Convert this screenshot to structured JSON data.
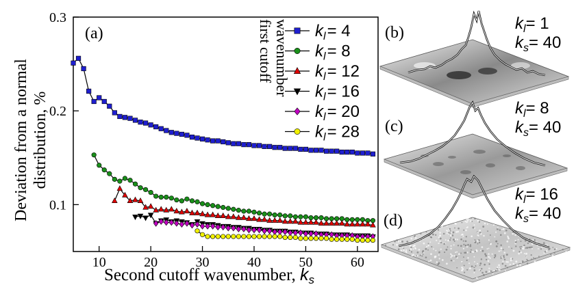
{
  "chart_data": [
    {
      "type": "line",
      "panel_label": "(a)",
      "xlabel": "Second cutoff wavenumber, ",
      "xlabel_var": "k",
      "xlabel_sub": "s",
      "ylabel_line1": "Deviation from a normal",
      "ylabel_line2": "distribution, %",
      "xlim": [
        5,
        64
      ],
      "ylim": [
        0.05,
        0.3
      ],
      "xticks": [
        10,
        20,
        30,
        40,
        50,
        60
      ],
      "yticks": [
        0.1,
        0.2,
        0.3
      ],
      "ytick_labels": [
        "0.1",
        "0.2",
        "0.3"
      ],
      "legend_title_line1": "first cutoff",
      "legend_title_line2": "wavenumber",
      "legend_var": "k",
      "legend_sub": "l",
      "legend_position": "top-right",
      "grid": false,
      "series": [
        {
          "name": "= 4",
          "marker": "square",
          "color": "#1f1fcf",
          "x": [
            5,
            6,
            7,
            8,
            9,
            10,
            11,
            12,
            13,
            14,
            15,
            16,
            17,
            18,
            19,
            20,
            21,
            22,
            23,
            24,
            25,
            26,
            27,
            28,
            29,
            30,
            31,
            32,
            33,
            34,
            35,
            36,
            37,
            38,
            39,
            40,
            41,
            42,
            43,
            44,
            45,
            46,
            47,
            48,
            49,
            50,
            51,
            52,
            53,
            54,
            55,
            56,
            57,
            58,
            59,
            60,
            61,
            62,
            63
          ],
          "y": [
            0.251,
            0.256,
            0.245,
            0.221,
            0.21,
            0.214,
            0.21,
            0.205,
            0.198,
            0.194,
            0.193,
            0.192,
            0.19,
            0.188,
            0.187,
            0.185,
            0.183,
            0.181,
            0.179,
            0.177,
            0.176,
            0.175,
            0.174,
            0.172,
            0.171,
            0.17,
            0.169,
            0.168,
            0.168,
            0.167,
            0.166,
            0.165,
            0.165,
            0.164,
            0.164,
            0.163,
            0.163,
            0.162,
            0.162,
            0.161,
            0.161,
            0.16,
            0.16,
            0.16,
            0.159,
            0.159,
            0.158,
            0.158,
            0.158,
            0.157,
            0.157,
            0.157,
            0.156,
            0.156,
            0.156,
            0.155,
            0.155,
            0.155,
            0.154
          ]
        },
        {
          "name": "= 8",
          "marker": "circle",
          "color": "#1a8f1a",
          "x": [
            9,
            10,
            11,
            12,
            13,
            14,
            15,
            16,
            17,
            18,
            19,
            20,
            21,
            22,
            23,
            24,
            25,
            26,
            27,
            28,
            29,
            30,
            31,
            32,
            33,
            34,
            35,
            36,
            37,
            38,
            39,
            40,
            41,
            42,
            43,
            44,
            45,
            46,
            47,
            48,
            49,
            50,
            51,
            52,
            53,
            54,
            55,
            56,
            57,
            58,
            59,
            60,
            61,
            62,
            63
          ],
          "y": [
            0.153,
            0.142,
            0.137,
            0.133,
            0.127,
            0.125,
            0.128,
            0.126,
            0.122,
            0.118,
            0.116,
            0.113,
            0.109,
            0.108,
            0.108,
            0.107,
            0.105,
            0.104,
            0.106,
            0.104,
            0.103,
            0.101,
            0.1,
            0.099,
            0.098,
            0.097,
            0.096,
            0.095,
            0.094,
            0.093,
            0.093,
            0.092,
            0.091,
            0.09,
            0.09,
            0.089,
            0.089,
            0.088,
            0.088,
            0.087,
            0.087,
            0.087,
            0.086,
            0.086,
            0.086,
            0.085,
            0.085,
            0.085,
            0.085,
            0.084,
            0.084,
            0.084,
            0.084,
            0.083,
            0.083
          ]
        },
        {
          "name": "= 12",
          "marker": "triangle-up",
          "color": "#e00000",
          "x": [
            13,
            14,
            15,
            16,
            17,
            18,
            19,
            20,
            21,
            22,
            23,
            24,
            25,
            26,
            27,
            28,
            29,
            30,
            31,
            32,
            33,
            34,
            35,
            36,
            37,
            38,
            39,
            40,
            41,
            42,
            43,
            44,
            45,
            46,
            47,
            48,
            49,
            50,
            51,
            52,
            53,
            54,
            55,
            56,
            57,
            58,
            59,
            60,
            61,
            62,
            63
          ],
          "y": [
            0.104,
            0.117,
            0.11,
            0.104,
            0.105,
            0.104,
            0.097,
            0.098,
            0.094,
            0.095,
            0.094,
            0.095,
            0.093,
            0.092,
            0.093,
            0.091,
            0.091,
            0.09,
            0.089,
            0.089,
            0.088,
            0.088,
            0.087,
            0.087,
            0.086,
            0.086,
            0.085,
            0.085,
            0.084,
            0.084,
            0.083,
            0.083,
            0.083,
            0.082,
            0.082,
            0.082,
            0.081,
            0.081,
            0.081,
            0.081,
            0.08,
            0.08,
            0.08,
            0.08,
            0.08,
            0.079,
            0.079,
            0.079,
            0.079,
            0.079,
            0.078
          ]
        },
        {
          "name": "= 16",
          "marker": "triangle-down",
          "color": "#000000",
          "x": [
            17,
            18,
            19,
            20,
            21,
            22,
            23,
            24,
            25,
            26,
            27,
            28,
            29,
            30,
            31,
            32,
            33,
            34,
            35,
            36,
            37,
            38,
            39,
            40,
            41,
            42,
            43,
            44,
            45,
            46,
            47,
            48,
            49,
            50,
            51,
            52,
            53,
            54,
            55,
            56,
            57,
            58,
            59,
            60,
            61,
            62,
            63
          ],
          "y": [
            0.087,
            0.088,
            0.086,
            0.089,
            0.08,
            0.083,
            0.084,
            0.082,
            0.083,
            0.082,
            0.081,
            0.079,
            0.082,
            0.08,
            0.079,
            0.079,
            0.078,
            0.077,
            0.077,
            0.076,
            0.076,
            0.075,
            0.075,
            0.074,
            0.074,
            0.073,
            0.073,
            0.072,
            0.072,
            0.072,
            0.071,
            0.071,
            0.07,
            0.07,
            0.07,
            0.069,
            0.069,
            0.069,
            0.068,
            0.068,
            0.068,
            0.068,
            0.067,
            0.067,
            0.067,
            0.067,
            0.066
          ]
        },
        {
          "name": "= 20",
          "marker": "diamond",
          "color": "#c000c0",
          "x": [
            21,
            22,
            23,
            24,
            25,
            26,
            27,
            28,
            29,
            30,
            31,
            32,
            33,
            34,
            35,
            36,
            37,
            38,
            39,
            40,
            41,
            42,
            43,
            44,
            45,
            46,
            47,
            48,
            49,
            50,
            51,
            52,
            53,
            54,
            55,
            56,
            57,
            58,
            59,
            60,
            61,
            62,
            63
          ],
          "y": [
            0.08,
            0.082,
            0.081,
            0.081,
            0.08,
            0.079,
            0.08,
            0.078,
            0.079,
            0.077,
            0.077,
            0.077,
            0.076,
            0.076,
            0.075,
            0.075,
            0.074,
            0.074,
            0.073,
            0.073,
            0.073,
            0.072,
            0.072,
            0.071,
            0.071,
            0.071,
            0.07,
            0.07,
            0.07,
            0.069,
            0.069,
            0.069,
            0.068,
            0.068,
            0.068,
            0.067,
            0.067,
            0.067,
            0.067,
            0.066,
            0.066,
            0.066,
            0.066
          ]
        },
        {
          "name": "= 28",
          "marker": "circle-open",
          "color": "#f0f000",
          "x": [
            29,
            30,
            31,
            32,
            33,
            34,
            35,
            36,
            37,
            38,
            39,
            40,
            41,
            42,
            43,
            44,
            45,
            46,
            47,
            48,
            49,
            50,
            51,
            52,
            53,
            54,
            55,
            56,
            57,
            58,
            59,
            60,
            61,
            62,
            63
          ],
          "y": [
            0.072,
            0.068,
            0.066,
            0.066,
            0.066,
            0.066,
            0.066,
            0.066,
            0.066,
            0.066,
            0.066,
            0.066,
            0.066,
            0.066,
            0.066,
            0.066,
            0.066,
            0.065,
            0.065,
            0.065,
            0.064,
            0.064,
            0.064,
            0.064,
            0.064,
            0.064,
            0.063,
            0.063,
            0.063,
            0.063,
            0.063,
            0.062,
            0.062,
            0.062,
            0.062
          ]
        }
      ]
    }
  ],
  "surfaces": [
    {
      "panel_label": "(b)",
      "kl_value": "= 1",
      "ks_value": "= 40",
      "texture": "smooth"
    },
    {
      "panel_label": "(c)",
      "kl_value": "= 8",
      "ks_value": "= 40",
      "texture": "medium"
    },
    {
      "panel_label": "(d)",
      "kl_value": "= 16",
      "ks_value": "= 40",
      "texture": "fine"
    }
  ],
  "symbol_k": "k",
  "sub_l": "l",
  "sub_s": "s"
}
